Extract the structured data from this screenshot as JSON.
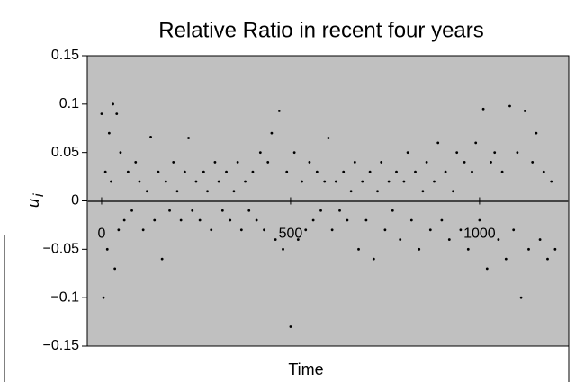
{
  "chart_data": {
    "type": "scatter",
    "title": "Relative Ratio in recent four years",
    "x_label": "Time",
    "y_label": "u",
    "y_label_subscript": "i",
    "color": "#000000",
    "background": "#c0c0c0",
    "xlim": [
      -38,
      1236
    ],
    "ylim": [
      -0.15,
      0.15
    ],
    "xticks": [
      0,
      500,
      1000
    ],
    "yticks": [
      0.15,
      0.1,
      0.05,
      0,
      {
        "value": -0.05,
        "label": "−0.05"
      },
      {
        "value": -0.1,
        "label": "−0.1"
      },
      {
        "value": -0.15,
        "label": "−0.15"
      }
    ],
    "x": [
      0,
      5,
      10,
      15,
      20,
      25,
      30,
      35,
      40,
      45,
      50,
      60,
      70,
      80,
      90,
      100,
      110,
      120,
      130,
      140,
      150,
      160,
      170,
      180,
      190,
      200,
      210,
      220,
      230,
      240,
      250,
      260,
      270,
      280,
      290,
      300,
      310,
      320,
      330,
      340,
      350,
      360,
      370,
      380,
      390,
      400,
      410,
      420,
      430,
      440,
      450,
      460,
      470,
      480,
      490,
      500,
      510,
      520,
      530,
      540,
      550,
      560,
      570,
      580,
      590,
      600,
      610,
      620,
      630,
      640,
      650,
      660,
      670,
      680,
      690,
      700,
      710,
      720,
      730,
      740,
      750,
      760,
      770,
      780,
      790,
      800,
      810,
      820,
      830,
      840,
      850,
      860,
      870,
      880,
      890,
      900,
      910,
      920,
      930,
      940,
      950,
      960,
      970,
      980,
      990,
      1000,
      1010,
      1020,
      1030,
      1040,
      1050,
      1060,
      1070,
      1080,
      1090,
      1100,
      1110,
      1120,
      1130,
      1140,
      1150,
      1160,
      1170,
      1180,
      1190,
      1200
    ],
    "values": [
      0.09,
      -0.1,
      0.03,
      -0.05,
      0.07,
      0.02,
      0.1,
      -0.07,
      0.09,
      -0.03,
      0.05,
      -0.02,
      0.03,
      -0.01,
      0.04,
      0.02,
      -0.03,
      0.01,
      0.066,
      -0.02,
      0.03,
      -0.06,
      0.02,
      -0.01,
      0.04,
      0.01,
      -0.02,
      0.03,
      0.065,
      -0.01,
      0.02,
      -0.02,
      0.03,
      0.01,
      -0.03,
      0.04,
      0.02,
      -0.01,
      0.03,
      -0.02,
      0.01,
      0.04,
      -0.03,
      0.02,
      -0.01,
      0.03,
      -0.02,
      0.05,
      -0.03,
      0.04,
      0.07,
      -0.04,
      0.093,
      -0.05,
      0.03,
      -0.13,
      0.05,
      -0.04,
      0.02,
      -0.03,
      0.04,
      -0.02,
      0.03,
      -0.01,
      0.02,
      0.065,
      -0.03,
      0.02,
      -0.01,
      0.03,
      -0.02,
      0.01,
      0.04,
      -0.05,
      0.02,
      -0.02,
      0.03,
      -0.06,
      0.01,
      0.04,
      -0.03,
      0.02,
      -0.01,
      0.03,
      -0.04,
      0.02,
      0.05,
      -0.02,
      0.03,
      -0.05,
      0.01,
      0.04,
      -0.03,
      0.02,
      0.06,
      -0.02,
      0.03,
      -0.04,
      0.01,
      0.05,
      -0.03,
      0.04,
      -0.05,
      0.03,
      0.06,
      -0.02,
      0.095,
      -0.07,
      0.04,
      0.05,
      -0.04,
      0.03,
      -0.06,
      0.098,
      -0.03,
      0.05,
      -0.1,
      0.093,
      -0.05,
      0.04,
      0.07,
      -0.04,
      0.03,
      -0.06,
      0.02,
      -0.05
    ]
  }
}
